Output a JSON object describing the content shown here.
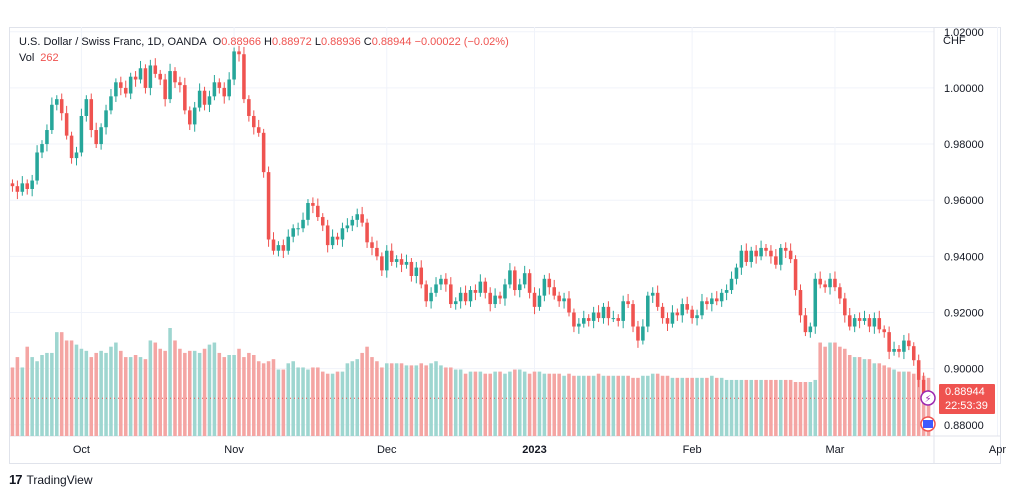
{
  "legend": {
    "symbol": "U.S. Dollar / Swiss Franc, 1D, OANDA",
    "o_label": "O",
    "o_value": "0.88966",
    "h_label": "H",
    "h_value": "0.88972",
    "l_label": "L",
    "l_value": "0.88936",
    "c_label": "C",
    "c_value": "0.88944",
    "change": "−0.00022 (−0.02%)",
    "vol_label": "Vol",
    "vol_value": "262"
  },
  "currency": "CHF",
  "price_tag": {
    "price": "0.88944",
    "countdown": "22:53:39"
  },
  "branding": "TradingView",
  "colors": {
    "up": "#26a69a",
    "down": "#ef5350",
    "vol_up": "#9ed6d0",
    "vol_down": "#f4a5a3",
    "grid": "#f0f3fa"
  },
  "chart_data": {
    "type": "candlestick",
    "y_axis": {
      "range": [
        0.876,
        1.0217
      ],
      "ticks": [
        "1.02000",
        "1.00000",
        "0.98000",
        "0.96000",
        "0.94000",
        "0.92000",
        "0.90000",
        "0.88000"
      ],
      "tick_values": [
        1.02,
        1.0,
        0.98,
        0.96,
        0.94,
        0.92,
        0.9,
        0.88
      ]
    },
    "x_ticks": [
      {
        "label": "Oct",
        "index": 14
      },
      {
        "label": "Nov",
        "index": 45
      },
      {
        "label": "Dec",
        "index": 76
      },
      {
        "label": "2023",
        "index": 106
      },
      {
        "label": "Feb",
        "index": 138
      },
      {
        "label": "Mar",
        "index": 167
      },
      {
        "label": "Apr",
        "index": 200
      }
    ],
    "last_price": 0.88944,
    "grid": true,
    "closes": [
      0.965,
      0.963,
      0.966,
      0.964,
      0.967,
      0.977,
      0.98,
      0.985,
      0.994,
      0.996,
      0.991,
      0.983,
      0.975,
      0.977,
      0.99,
      0.996,
      0.985,
      0.98,
      0.986,
      0.992,
      0.997,
      1.002,
      1.0,
      0.998,
      1.004,
      1.003,
      1.007,
      1.0,
      1.008,
      1.005,
      1.003,
      0.996,
      1.006,
      1.002,
      1.001,
      0.992,
      0.987,
      0.993,
      0.999,
      0.994,
      0.997,
      1.002,
      1.0,
      0.997,
      1.003,
      1.013,
      1.012,
      0.996,
      0.99,
      0.986,
      0.984,
      0.97,
      0.946,
      0.942,
      0.944,
      0.942,
      0.947,
      0.95,
      0.95,
      0.953,
      0.959,
      0.958,
      0.954,
      0.951,
      0.944,
      0.947,
      0.946,
      0.95,
      0.951,
      0.953,
      0.955,
      0.952,
      0.945,
      0.943,
      0.94,
      0.935,
      0.942,
      0.938,
      0.939,
      0.937,
      0.938,
      0.933,
      0.936,
      0.93,
      0.924,
      0.927,
      0.93,
      0.932,
      0.93,
      0.923,
      0.924,
      0.927,
      0.924,
      0.928,
      0.927,
      0.931,
      0.927,
      0.923,
      0.926,
      0.925,
      0.93,
      0.935,
      0.928,
      0.93,
      0.934,
      0.927,
      0.922,
      0.926,
      0.932,
      0.929,
      0.926,
      0.924,
      0.925,
      0.92,
      0.915,
      0.916,
      0.918,
      0.917,
      0.92,
      0.918,
      0.922,
      0.918,
      0.918,
      0.917,
      0.924,
      0.923,
      0.915,
      0.91,
      0.915,
      0.926,
      0.927,
      0.922,
      0.918,
      0.916,
      0.92,
      0.919,
      0.923,
      0.921,
      0.918,
      0.919,
      0.924,
      0.923,
      0.925,
      0.924,
      0.927,
      0.928,
      0.932,
      0.936,
      0.942,
      0.938,
      0.942,
      0.94,
      0.943,
      0.942,
      0.94,
      0.937,
      0.943,
      0.942,
      0.939,
      0.928,
      0.919,
      0.913,
      0.915,
      0.932,
      0.93,
      0.929,
      0.932,
      0.929,
      0.925,
      0.919,
      0.915,
      0.918,
      0.917,
      0.918,
      0.915,
      0.918,
      0.914,
      0.913,
      0.906,
      0.907,
      0.906,
      0.91,
      0.908,
      0.903,
      0.896,
      0.891,
      0.8894
    ],
    "volumes": [
      330,
      380,
      330,
      430,
      380,
      360,
      390,
      400,
      400,
      500,
      500,
      460,
      460,
      440,
      420,
      410,
      380,
      400,
      410,
      400,
      430,
      450,
      410,
      380,
      380,
      390,
      380,
      370,
      460,
      450,
      420,
      410,
      520,
      460,
      420,
      400,
      410,
      410,
      400,
      420,
      440,
      450,
      400,
      380,
      390,
      390,
      420,
      380,
      400,
      390,
      360,
      350,
      360,
      370,
      320,
      320,
      350,
      360,
      330,
      330,
      320,
      330,
      330,
      310,
      300,
      300,
      310,
      310,
      350,
      360,
      370,
      400,
      430,
      380,
      360,
      330,
      350,
      350,
      350,
      350,
      340,
      340,
      340,
      350,
      340,
      350,
      360,
      340,
      330,
      330,
      320,
      320,
      300,
      310,
      310,
      310,
      300,
      300,
      310,
      310,
      300,
      310,
      320,
      320,
      310,
      300,
      310,
      310,
      300,
      300,
      300,
      300,
      290,
      300,
      290,
      290,
      290,
      290,
      290,
      300,
      290,
      290,
      290,
      290,
      290,
      290,
      280,
      280,
      290,
      290,
      300,
      300,
      290,
      290,
      280,
      280,
      280,
      280,
      280,
      280,
      280,
      280,
      290,
      280,
      280,
      270,
      270,
      270,
      270,
      270,
      270,
      270,
      270,
      270,
      270,
      270,
      270,
      270,
      270,
      260,
      260,
      260,
      260,
      270,
      450,
      430,
      450,
      450,
      430,
      420,
      390,
      380,
      380,
      370,
      370,
      350,
      350,
      340,
      330,
      320,
      310,
      310,
      310,
      300,
      300,
      290,
      280,
      270,
      270,
      262
    ]
  }
}
